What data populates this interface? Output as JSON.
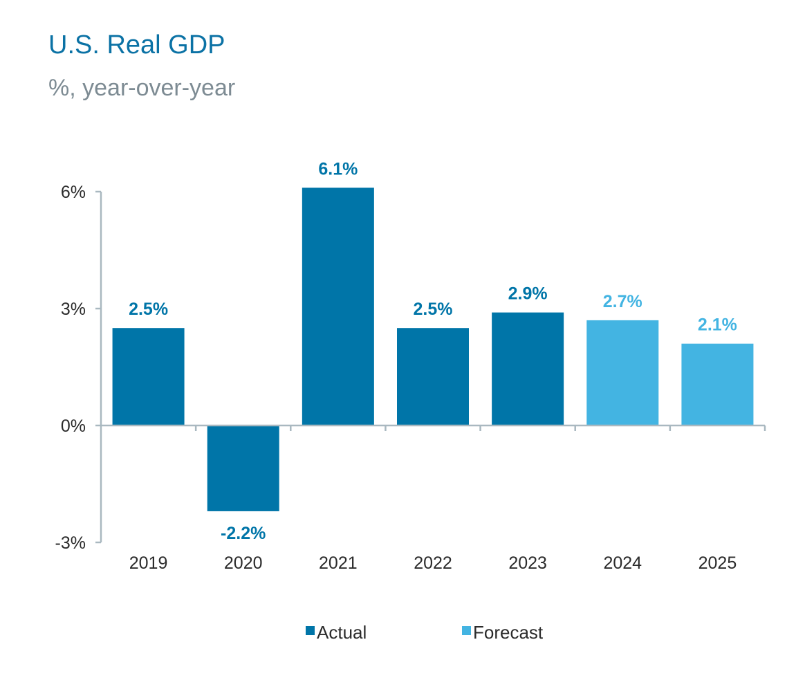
{
  "chart_data": {
    "type": "bar",
    "title": "U.S. Real GDP",
    "subtitle": "%, year-over-year",
    "categories": [
      "2019",
      "2020",
      "2021",
      "2022",
      "2023",
      "2024",
      "2025"
    ],
    "values": [
      2.5,
      -2.2,
      6.1,
      2.5,
      2.9,
      2.7,
      2.1
    ],
    "value_labels": [
      "2.5%",
      "-2.2%",
      "6.1%",
      "2.5%",
      "2.9%",
      "2.7%",
      "2.1%"
    ],
    "bar_types": [
      "Actual",
      "Actual",
      "Actual",
      "Actual",
      "Actual",
      "Forecast",
      "Forecast"
    ],
    "ylim": [
      -3,
      6
    ],
    "yticks": [
      6,
      3,
      0,
      -3
    ],
    "ytick_labels": [
      "6%",
      "3%",
      "0%",
      "-3%"
    ],
    "legend": [
      {
        "name": "Actual",
        "color": "#0075a8"
      },
      {
        "name": "Forecast",
        "color": "#43b4e2"
      }
    ],
    "legend_position": "bottom",
    "grid": false
  },
  "colors": {
    "actual": "#0075a8",
    "forecast": "#43b4e2",
    "axis": "#a9b8c0",
    "title": "#0b72a5",
    "subtitle": "#7d8b93"
  }
}
